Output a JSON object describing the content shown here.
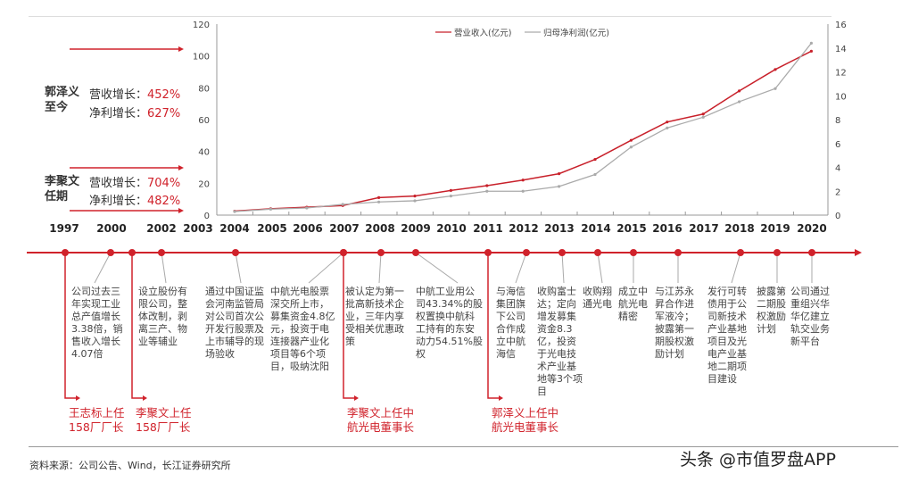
{
  "chart_data": {
    "type": "line",
    "x": [
      "2004",
      "2005",
      "2006",
      "2007",
      "2008",
      "2009",
      "2010",
      "2011",
      "2012",
      "2013",
      "2014",
      "2015",
      "2016",
      "2017",
      "2018",
      "2019",
      "2020"
    ],
    "series": [
      {
        "name": "营业收入(亿元)",
        "axis": "left",
        "color": "#c8202a",
        "values": [
          2.5,
          4,
          5,
          6,
          11,
          12,
          15.5,
          18.5,
          22,
          26,
          35,
          47,
          58.5,
          63.5,
          78,
          91.5,
          103
        ]
      },
      {
        "name": "归母净利润(亿元)",
        "axis": "right",
        "color": "#aaaaaa",
        "values": [
          0.3,
          0.5,
          0.6,
          0.9,
          1.1,
          1.2,
          1.6,
          2.0,
          2.0,
          2.4,
          3.4,
          5.7,
          7.3,
          8.2,
          9.5,
          10.6,
          14.4
        ]
      }
    ],
    "ylim_left": [
      0,
      120
    ],
    "yticks_left": [
      "0",
      "20",
      "40",
      "60",
      "80",
      "100",
      "120"
    ],
    "ylim_right": [
      0,
      16
    ],
    "yticks_right": [
      "0",
      "2",
      "4",
      "6",
      "8",
      "10",
      "12",
      "14",
      "16"
    ],
    "legend": "top-right",
    "grid": false
  },
  "left_panel": {
    "guo": {
      "name": "郭泽义\n至今",
      "rev_label": "营收增长：",
      "rev": "452%",
      "np_label": "净利增长：",
      "np": "627%"
    },
    "li": {
      "name": "李聚文\n任期",
      "rev_label": "营收增长：",
      "rev": "704%",
      "np_label": "净利增长：",
      "np": "482%"
    }
  },
  "timeline": {
    "years": [
      "1997",
      "2000",
      "2002",
      "2003",
      "2004",
      "2005",
      "2006",
      "2007",
      "2008",
      "2009",
      "2010",
      "2011",
      "2012",
      "2013",
      "2014",
      "2015",
      "2016",
      "2017",
      "2018",
      "2019",
      "2020"
    ],
    "events": [
      "公司过去三\n年实现工业\n总产值增长\n3.38倍，销\n售收入增长\n4.07倍",
      "设立股份有\n限公司，整\n体改制，剥\n离三产、物\n业等辅业",
      "通过中国证监\n会河南监管局\n对公司首次公\n开发行股票及\n上市辅导的现\n场验收",
      "中航光电股票\n深交所上市，\n募集资金4.8亿\n元，投资于电\n连接器产业化\n项目等6个项\n目，吸纳沈阳",
      "被认定为第一\n批高新技术企\n业，三年内享\n受相关优惠政\n策",
      "中航工业用公\n司43.34%的股\n权置换中航科\n工持有的东安\n动力54.51%股\n权",
      "与海信\n集团旗\n下公司\n合作成\n立中航\n海信",
      "收购富士\n达；定向\n增发募集\n资金8.3\n亿，投资\n于光电技\n术产业基\n地等3个项\n目",
      "收购翔\n通光电",
      "成立中\n航光电\n精密",
      "与江苏永\n昇合作进\n军液冷；\n披露第一\n期股权激\n励计划",
      "发行可转\n债用于公\n司新技术\n产业基地\n项目及光\n电产业基\n地二期项\n目建设",
      "披露第\n二期股\n权激励\n计划",
      "公司通过\n重组兴华\n华亿建立\n轨交业务\n新平台"
    ],
    "managers": [
      "王志标上任\n158厂厂长",
      "李聚文上任\n158厂厂长",
      "李聚文上任中\n航光电董事长",
      "郭泽义上任中\n航光电董事长"
    ]
  },
  "footer": {
    "source": "资料来源：公司公告、Wind，长江证券研究所",
    "watermark": "头条 @市值罗盘APP"
  },
  "colors": {
    "accent": "#d0222b",
    "profit": "#aaaaaa"
  }
}
